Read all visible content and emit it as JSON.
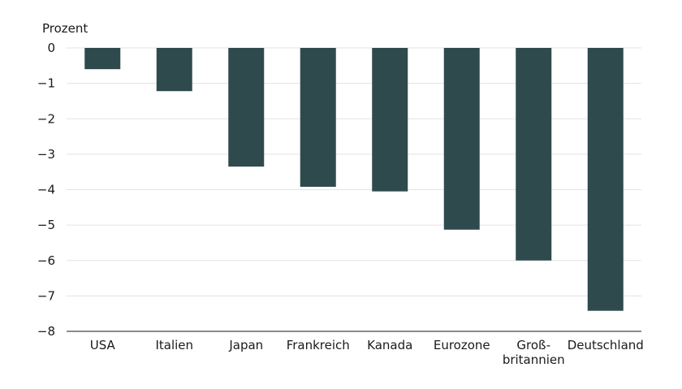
{
  "chart_data": {
    "type": "bar",
    "ylabel": "Prozent",
    "categories": [
      [
        "USA"
      ],
      [
        "Italien"
      ],
      [
        "Japan"
      ],
      [
        "Frankreich"
      ],
      [
        "Kanada"
      ],
      [
        "Eurozone"
      ],
      [
        "Groß-",
        "britannien"
      ],
      [
        "Deutschland"
      ]
    ],
    "values": [
      -0.6,
      -1.22,
      -3.35,
      -3.92,
      -4.05,
      -5.13,
      -6.0,
      -7.42
    ],
    "ylim": [
      -8,
      0
    ],
    "yticks": [
      0,
      -1,
      -2,
      -3,
      -4,
      -5,
      -6,
      -7,
      -8
    ],
    "ytick_labels": [
      "0",
      "−1",
      "−2",
      "−3",
      "−4",
      "−5",
      "−6",
      "−7",
      "−8"
    ],
    "grid": true,
    "bar_color": "#2f4a4c"
  }
}
